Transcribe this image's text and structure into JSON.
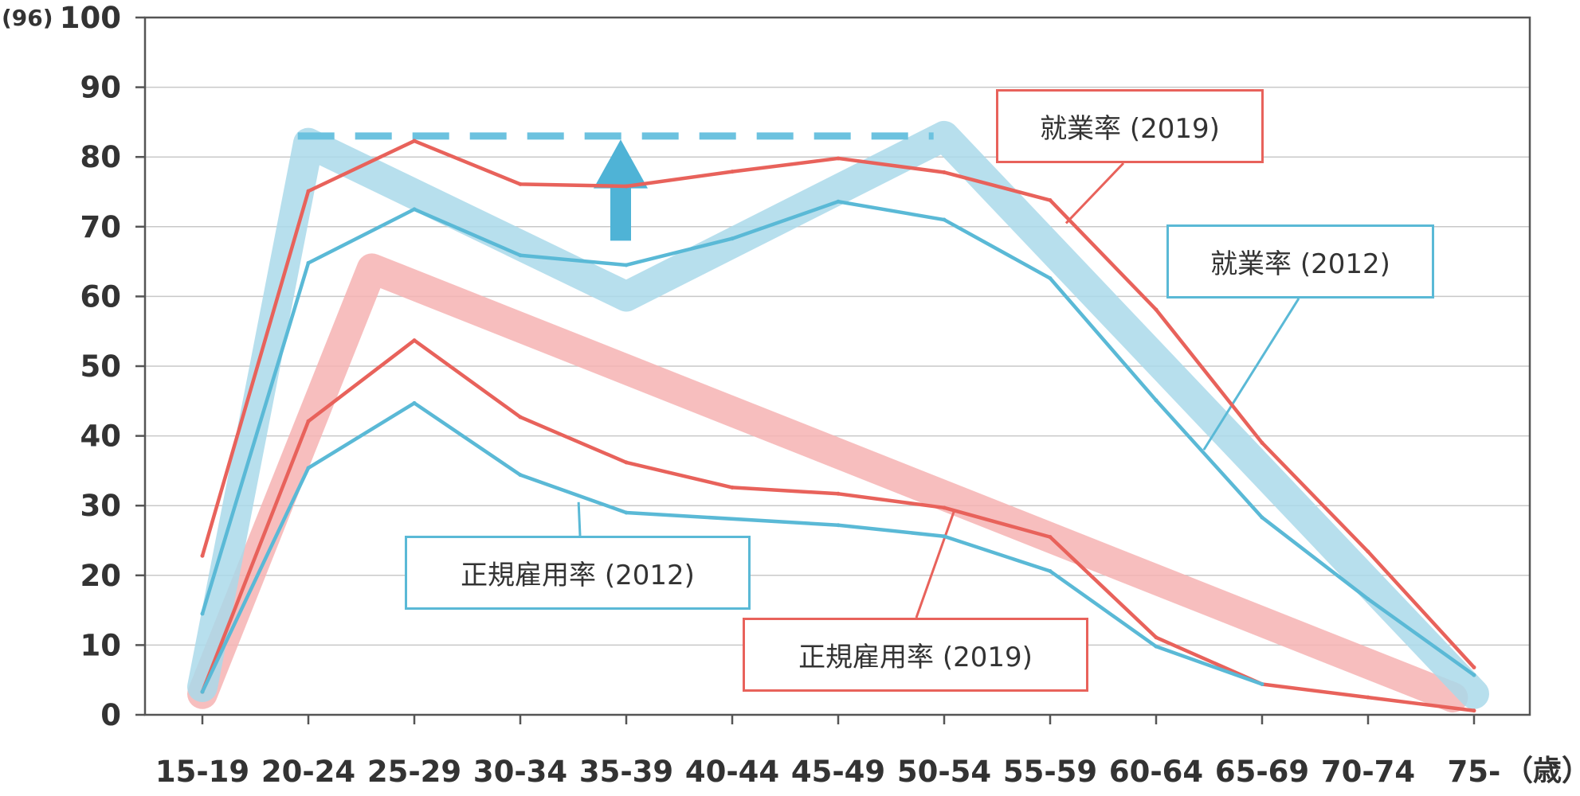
{
  "chart_data": {
    "type": "line",
    "y_unit_label": "(96)",
    "x_unit_label": "（歳）",
    "categories": [
      "15-19",
      "20-24",
      "25-29",
      "30-34",
      "35-39",
      "40-44",
      "45-49",
      "50-54",
      "55-59",
      "60-64",
      "65-69",
      "70-74",
      "75-"
    ],
    "ylim": [
      0,
      100
    ],
    "yticks": [
      0,
      10,
      20,
      30,
      40,
      50,
      60,
      70,
      80,
      90,
      100
    ],
    "grid": true,
    "series": [
      {
        "name": "就業率 (2019)",
        "color": "#e8625b",
        "values": [
          22.8,
          75.1,
          82.3,
          76.1,
          75.8,
          77.9,
          79.8,
          77.8,
          73.8,
          58.1,
          39.0,
          23.4,
          6.8
        ]
      },
      {
        "name": "就業率 (2012)",
        "color": "#5ab9d6",
        "values": [
          14.5,
          64.8,
          72.5,
          65.9,
          64.5,
          68.3,
          73.6,
          71.0,
          62.6,
          45.1,
          28.3,
          16.6,
          5.7
        ]
      },
      {
        "name": "正規雇用率 (2019)",
        "color": "#e8625b",
        "values": [
          3.3,
          42.1,
          53.7,
          42.7,
          36.2,
          32.6,
          31.7,
          29.7,
          25.5,
          11.1,
          4.4,
          2.5,
          0.6
        ]
      },
      {
        "name": "正規雇用率 (2012)",
        "color": "#5ab9d6",
        "values": [
          3.3,
          35.4,
          44.7,
          34.4,
          29.0,
          null,
          27.2,
          25.6,
          20.6,
          9.8,
          4.4,
          null,
          null
        ]
      }
    ],
    "annotations": {
      "dashed_level": 83,
      "arrow_at": "35-39",
      "trend_blue": [
        [
          0,
          4
        ],
        [
          1,
          82
        ],
        [
          4,
          60
        ],
        [
          7,
          83
        ],
        [
          12,
          3
        ]
      ],
      "trend_red": [
        [
          0,
          3
        ],
        [
          1.6,
          64
        ],
        [
          11.8,
          2.5
        ]
      ],
      "trend_blue_color": "#aad9ea",
      "trend_red_color": "#f6b3b3",
      "arrow_color": "#4fb3d6"
    },
    "label_boxes": [
      {
        "text": "就業率 (2019)",
        "color": "#e8625b"
      },
      {
        "text": "就業率 (2012)",
        "color": "#5ab9d6"
      },
      {
        "text": "正規雇用率 (2012)",
        "color": "#5ab9d6"
      },
      {
        "text": "正規雇用率 (2019)",
        "color": "#e8625b"
      }
    ]
  }
}
